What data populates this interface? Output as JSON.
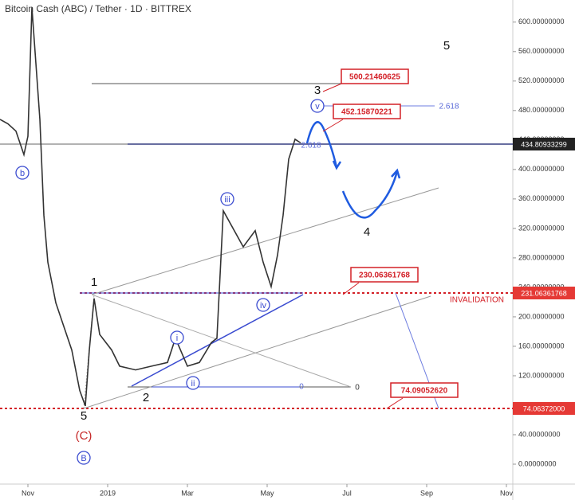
{
  "title": "Bitcoin Cash (ABC) / Tether · 1D · BITTREX",
  "chart_data": {
    "type": "line",
    "color": "#333333",
    "x": [
      -0.7,
      -0.5,
      -0.3,
      -0.1,
      0,
      0.1,
      0.2,
      0.3,
      0.4,
      0.5,
      0.7,
      0.9,
      1.1,
      1.3,
      1.44,
      1.54,
      1.66,
      1.8,
      2.1,
      2.3,
      2.7,
      3.1,
      3.5,
      3.7,
      4,
      4.3,
      4.6,
      4.74,
      4.9,
      5.4,
      5.7,
      5.9,
      6.1,
      6.26,
      6.4,
      6.54,
      6.7,
      6.84
    ],
    "values": [
      468,
      462,
      452,
      420,
      445,
      620,
      544,
      468,
      338,
      274,
      219,
      187,
      155,
      100,
      79,
      155,
      225,
      176,
      155,
      133,
      128,
      133,
      138,
      171,
      133,
      138,
      165,
      171,
      344,
      295,
      317,
      274,
      241,
      284,
      338,
      414,
      441,
      436
    ],
    "xlim": [
      -0.7,
      12.16
    ],
    "xticks": [
      {
        "value": 0,
        "label": "Nov"
      },
      {
        "value": 2,
        "label": "2019"
      },
      {
        "value": 4,
        "label": "Mar"
      },
      {
        "value": 6,
        "label": "May"
      },
      {
        "value": 8,
        "label": "Jul"
      },
      {
        "value": 10,
        "label": "Sep"
      },
      {
        "value": 12,
        "label": "Nov"
      }
    ],
    "ylim": [
      -27,
      630
    ],
    "yticks": [
      {
        "value": 0,
        "label": "0.00000000"
      },
      {
        "value": 40,
        "label": "40.00000000"
      },
      {
        "value": 80,
        "label": "80.00000000"
      },
      {
        "value": 120,
        "label": "120.00000000"
      },
      {
        "value": 160,
        "label": "160.00000000"
      },
      {
        "value": 200,
        "label": "200.00000000"
      },
      {
        "value": 240,
        "label": "240.00000000"
      },
      {
        "value": 280,
        "label": "280.00000000"
      },
      {
        "value": 320,
        "label": "320.00000000"
      },
      {
        "value": 360,
        "label": "360.00000000"
      },
      {
        "value": 400,
        "label": "400.00000000"
      },
      {
        "value": 440,
        "label": "440.00000000"
      },
      {
        "value": 480,
        "label": "480.00000000"
      },
      {
        "value": 520,
        "label": "520.00000000"
      },
      {
        "value": 560,
        "label": "560.00000000"
      },
      {
        "value": 600,
        "label": "600.00000000"
      }
    ]
  },
  "annotations": [
    "5",
    "3",
    "v",
    "iii",
    "iv",
    "i",
    "ii",
    "1",
    "2",
    "5",
    "(C)",
    "B",
    "b",
    "4",
    "500.21460625",
    "452.15870221",
    "230.06361768",
    "74.09052620",
    "2.618",
    "2.618",
    "0",
    "0",
    "INVALIDATION",
    "434.80933299",
    "231.06361768",
    "74.06372000"
  ]
}
